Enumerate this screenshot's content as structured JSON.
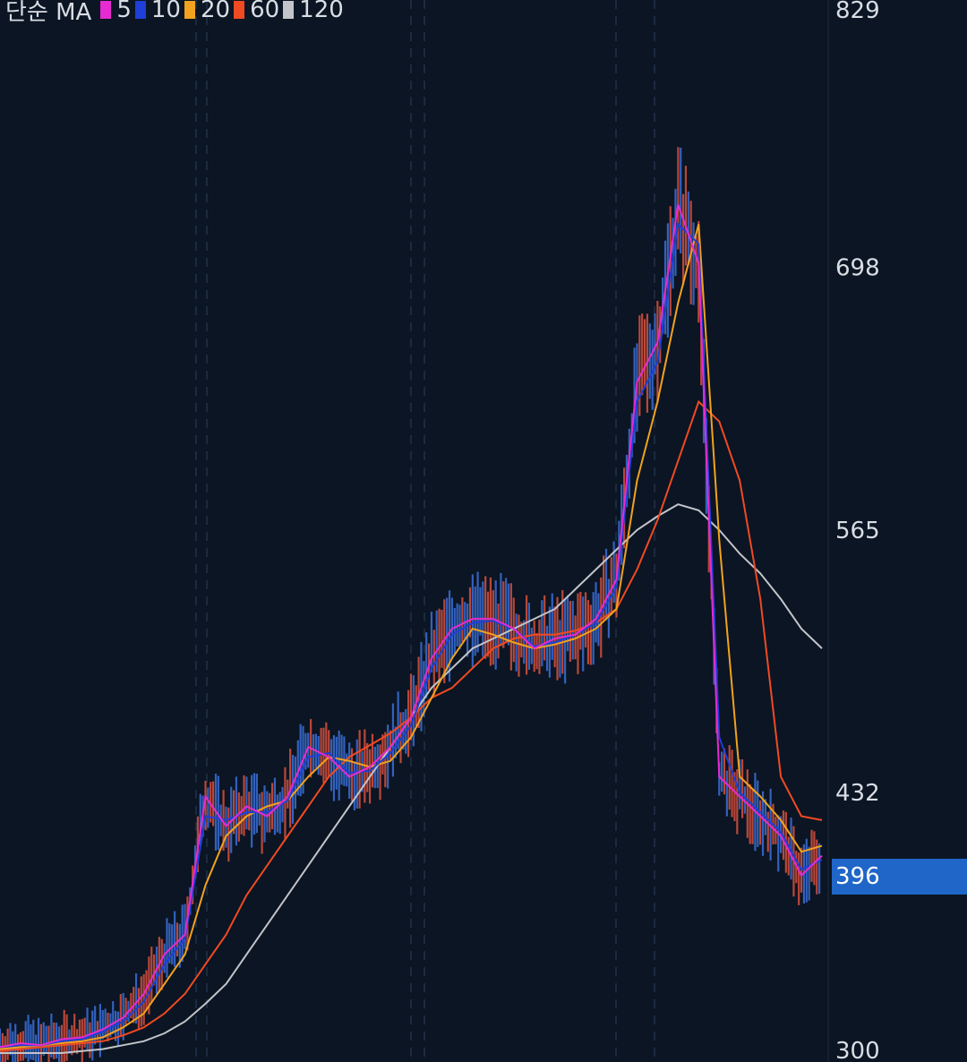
{
  "legend": {
    "title": "단순 MA",
    "items": [
      {
        "label": "5",
        "color": "#e62bd0"
      },
      {
        "label": "10",
        "color": "#1e3fd8"
      },
      {
        "label": "20",
        "color": "#f2a21e"
      },
      {
        "label": "60",
        "color": "#f04a22"
      },
      {
        "label": "120",
        "color": "#c2c4c9"
      }
    ]
  },
  "current_price": "396",
  "chart_data": {
    "type": "line",
    "y_ticks": [
      "829",
      "698",
      "565",
      "432",
      "300"
    ],
    "ylim": [
      300,
      829
    ],
    "x": [
      0,
      5,
      10,
      15,
      20,
      25,
      30,
      35,
      40,
      45,
      50,
      55,
      60,
      65,
      70,
      75,
      80,
      85,
      90,
      95,
      100,
      105,
      110,
      115,
      120,
      125,
      130,
      135,
      140,
      145,
      150,
      155,
      160,
      165,
      170,
      175,
      180,
      185,
      190,
      195,
      200
    ],
    "series": [
      {
        "name": "5",
        "color": "#e62bd0",
        "values": [
          303,
          305,
          304,
          307,
          308,
          312,
          318,
          330,
          350,
          360,
          430,
          415,
          425,
          420,
          430,
          455,
          450,
          440,
          445,
          455,
          470,
          500,
          515,
          520,
          520,
          515,
          505,
          510,
          512,
          520,
          540,
          640,
          660,
          730,
          700,
          440,
          430,
          420,
          410,
          390,
          400
        ]
      },
      {
        "name": "10",
        "color": "#1e3fd8",
        "values": [
          303,
          304,
          304,
          306,
          307,
          311,
          316,
          326,
          345,
          358,
          420,
          418,
          422,
          422,
          428,
          450,
          452,
          442,
          443,
          452,
          466,
          495,
          512,
          518,
          519,
          515,
          506,
          508,
          512,
          518,
          536,
          630,
          650,
          720,
          710,
          460,
          432,
          422,
          412,
          393,
          398
        ]
      },
      {
        "name": "20",
        "color": "#f2a21e",
        "values": [
          302,
          303,
          304,
          305,
          306,
          308,
          313,
          320,
          335,
          350,
          385,
          410,
          420,
          425,
          428,
          440,
          450,
          448,
          445,
          448,
          460,
          480,
          500,
          515,
          512,
          508,
          505,
          507,
          510,
          515,
          525,
          590,
          630,
          680,
          720,
          560,
          440,
          430,
          418,
          402,
          405
        ]
      },
      {
        "name": "60",
        "color": "#f04a22",
        "values": [
          301,
          302,
          303,
          304,
          305,
          306,
          309,
          313,
          320,
          330,
          345,
          360,
          380,
          395,
          410,
          425,
          440,
          450,
          456,
          462,
          470,
          480,
          485,
          495,
          505,
          510,
          512,
          512,
          514,
          518,
          525,
          545,
          570,
          600,
          630,
          620,
          590,
          530,
          440,
          420,
          418
        ]
      },
      {
        "name": "120",
        "color": "#c2c4c9",
        "values": [
          300,
          300,
          300,
          300,
          301,
          302,
          304,
          306,
          310,
          316,
          325,
          335,
          350,
          365,
          380,
          395,
          410,
          425,
          440,
          455,
          470,
          485,
          495,
          505,
          510,
          515,
          520,
          525,
          535,
          545,
          555,
          565,
          572,
          578,
          575,
          565,
          553,
          543,
          530,
          515,
          505
        ]
      }
    ]
  }
}
